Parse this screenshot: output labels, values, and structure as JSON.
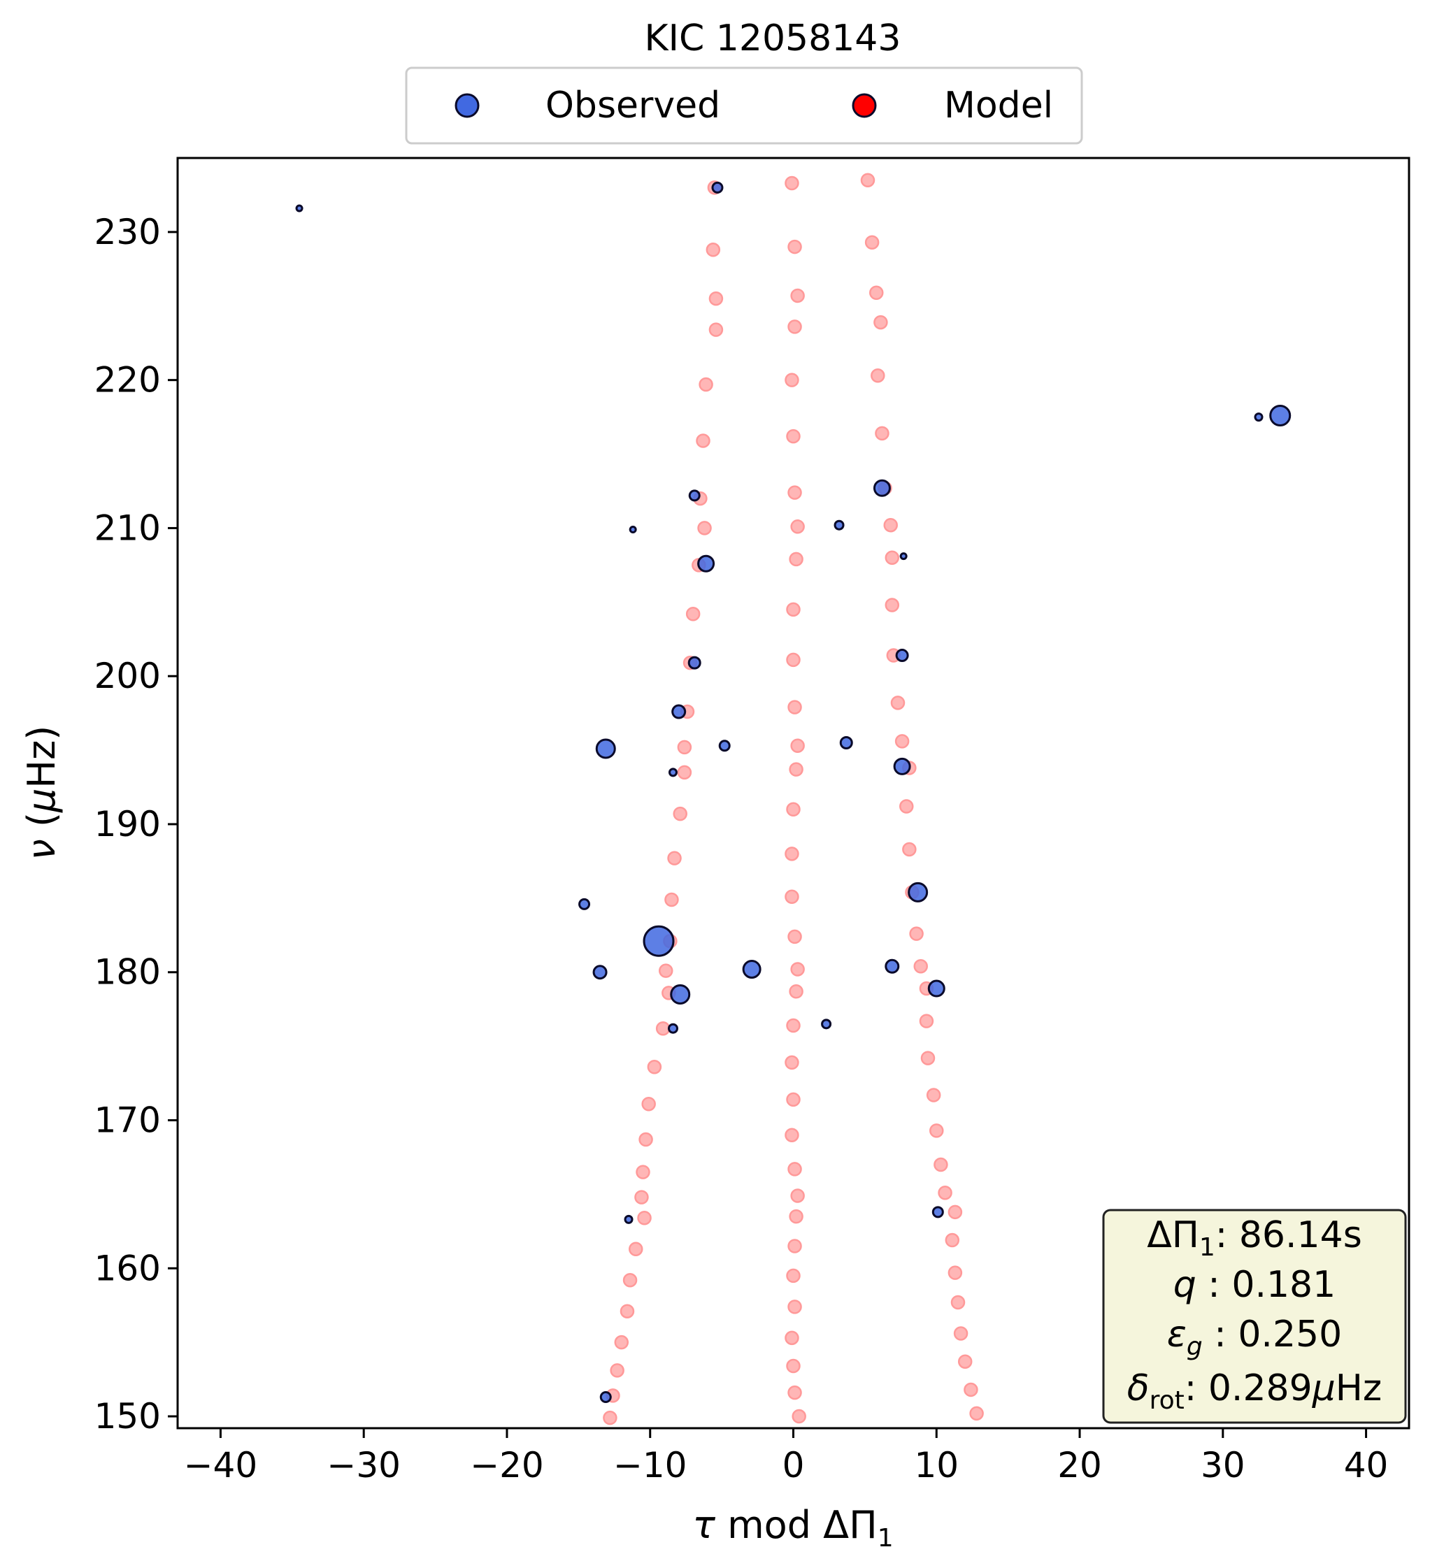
{
  "chart_data": {
    "type": "scatter",
    "title": "KIC 12058143",
    "xlabel": "τ mod ΔΠ₁",
    "ylabel": "ν (μHz)",
    "xlim": [
      -43,
      43
    ],
    "ylim": [
      149.2,
      235
    ],
    "xticks": [
      -40,
      -30,
      -20,
      -10,
      0,
      10,
      20,
      30,
      40
    ],
    "xtick_labels": [
      "−40",
      "−30",
      "−20",
      "−10",
      "0",
      "10",
      "20",
      "30",
      "40"
    ],
    "yticks": [
      150,
      160,
      170,
      180,
      190,
      200,
      210,
      220,
      230
    ],
    "ytick_labels": [
      "150",
      "160",
      "170",
      "180",
      "190",
      "200",
      "210",
      "220",
      "230"
    ],
    "grid": false,
    "legend": {
      "placement": "top-center",
      "entries": [
        {
          "label": "Observed",
          "color": "#4169e1"
        },
        {
          "label": "Model",
          "color": "#ff0000"
        }
      ]
    },
    "info_box": {
      "placement": "bottom-right",
      "lines": [
        "ΔΠ₁: 86.14s",
        "q :  0.181",
        "εg : 0.250",
        "δrot: 0.289μHz"
      ]
    },
    "colors": {
      "observed_fill": "#4169e1",
      "observed_edge": "#0a0a2a",
      "model_fill": "#ffb6b6",
      "model_edge": "#ff9999",
      "info_box_bg": "#f5f5dc"
    },
    "series": [
      {
        "name": "Model",
        "points": [
          [
            -0.1,
            233.3
          ],
          [
            0.1,
            229.0
          ],
          [
            0.3,
            225.7
          ],
          [
            0.1,
            223.6
          ],
          [
            -0.1,
            220.0
          ],
          [
            0.0,
            216.2
          ],
          [
            0.1,
            212.4
          ],
          [
            0.3,
            210.1
          ],
          [
            0.2,
            207.9
          ],
          [
            0.0,
            204.5
          ],
          [
            0.0,
            201.1
          ],
          [
            0.1,
            197.9
          ],
          [
            0.3,
            195.3
          ],
          [
            0.2,
            193.7
          ],
          [
            0.0,
            191.0
          ],
          [
            -0.1,
            188.0
          ],
          [
            -0.1,
            185.1
          ],
          [
            0.1,
            182.4
          ],
          [
            0.3,
            180.2
          ],
          [
            0.2,
            178.7
          ],
          [
            0.0,
            176.4
          ],
          [
            -0.1,
            173.9
          ],
          [
            0.0,
            171.4
          ],
          [
            -0.1,
            169.0
          ],
          [
            0.1,
            166.7
          ],
          [
            0.3,
            164.9
          ],
          [
            0.2,
            163.5
          ],
          [
            0.1,
            161.5
          ],
          [
            0.0,
            159.5
          ],
          [
            0.1,
            157.4
          ],
          [
            -0.1,
            155.3
          ],
          [
            0.0,
            153.4
          ],
          [
            0.1,
            151.6
          ],
          [
            0.4,
            150.0
          ],
          [
            -5.5,
            233.0
          ],
          [
            -5.6,
            228.8
          ],
          [
            -5.4,
            225.5
          ],
          [
            -5.4,
            223.4
          ],
          [
            -6.1,
            219.7
          ],
          [
            -6.3,
            215.9
          ],
          [
            -6.5,
            212.0
          ],
          [
            -6.2,
            210.0
          ],
          [
            -6.6,
            207.5
          ],
          [
            -7.0,
            204.2
          ],
          [
            -7.2,
            200.9
          ],
          [
            -7.4,
            197.6
          ],
          [
            -7.6,
            195.2
          ],
          [
            -7.6,
            193.5
          ],
          [
            -7.9,
            190.7
          ],
          [
            -8.3,
            187.7
          ],
          [
            -8.5,
            184.9
          ],
          [
            -8.6,
            182.1
          ],
          [
            -8.9,
            180.1
          ],
          [
            -8.7,
            178.6
          ],
          [
            -9.1,
            176.2
          ],
          [
            -9.7,
            173.6
          ],
          [
            -10.1,
            171.1
          ],
          [
            -10.3,
            168.7
          ],
          [
            -10.5,
            166.5
          ],
          [
            -10.6,
            164.8
          ],
          [
            -10.4,
            163.4
          ],
          [
            -11.0,
            161.3
          ],
          [
            -11.4,
            159.2
          ],
          [
            -11.6,
            157.1
          ],
          [
            -12.0,
            155.0
          ],
          [
            -12.3,
            153.1
          ],
          [
            -12.6,
            151.4
          ],
          [
            -12.8,
            149.9
          ],
          [
            5.2,
            233.5
          ],
          [
            5.5,
            229.3
          ],
          [
            5.8,
            225.9
          ],
          [
            6.1,
            223.9
          ],
          [
            5.9,
            220.3
          ],
          [
            6.2,
            216.4
          ],
          [
            6.4,
            212.7
          ],
          [
            6.8,
            210.2
          ],
          [
            6.9,
            208.0
          ],
          [
            6.9,
            204.8
          ],
          [
            7.0,
            201.4
          ],
          [
            7.3,
            198.2
          ],
          [
            7.6,
            195.6
          ],
          [
            8.1,
            193.8
          ],
          [
            7.9,
            191.2
          ],
          [
            8.1,
            188.3
          ],
          [
            8.3,
            185.4
          ],
          [
            8.6,
            182.6
          ],
          [
            8.9,
            180.4
          ],
          [
            9.3,
            178.9
          ],
          [
            9.3,
            176.7
          ],
          [
            9.4,
            174.2
          ],
          [
            9.8,
            171.7
          ],
          [
            10.0,
            169.3
          ],
          [
            10.3,
            167.0
          ],
          [
            10.6,
            165.1
          ],
          [
            11.3,
            163.8
          ],
          [
            11.1,
            161.9
          ],
          [
            11.3,
            159.7
          ],
          [
            11.5,
            157.7
          ],
          [
            11.7,
            155.6
          ],
          [
            12.0,
            153.7
          ],
          [
            12.4,
            151.8
          ],
          [
            12.8,
            150.2
          ]
        ]
      },
      {
        "name": "Observed",
        "points": [
          [
            -34.5,
            231.6,
            4
          ],
          [
            -5.3,
            233.0,
            7
          ],
          [
            32.5,
            217.5,
            5
          ],
          [
            34.0,
            217.6,
            14
          ],
          [
            -11.2,
            209.9,
            4
          ],
          [
            -6.9,
            212.2,
            7
          ],
          [
            -6.1,
            207.6,
            11
          ],
          [
            6.2,
            212.7,
            11
          ],
          [
            3.2,
            210.2,
            6
          ],
          [
            7.7,
            208.1,
            4
          ],
          [
            -6.9,
            200.9,
            8
          ],
          [
            7.6,
            201.4,
            8
          ],
          [
            -13.1,
            195.1,
            13
          ],
          [
            -8.0,
            197.6,
            9
          ],
          [
            -4.8,
            195.3,
            7
          ],
          [
            3.7,
            195.5,
            8
          ],
          [
            -8.4,
            193.5,
            5
          ],
          [
            7.6,
            193.9,
            11
          ],
          [
            -14.6,
            184.6,
            7
          ],
          [
            -9.4,
            182.1,
            21
          ],
          [
            -13.5,
            180.0,
            9
          ],
          [
            -2.9,
            180.2,
            12
          ],
          [
            6.9,
            180.4,
            9
          ],
          [
            8.7,
            185.4,
            13
          ],
          [
            -7.9,
            178.5,
            13
          ],
          [
            10.0,
            178.9,
            11
          ],
          [
            -8.4,
            176.2,
            6
          ],
          [
            2.3,
            176.5,
            6
          ],
          [
            -11.5,
            163.3,
            5
          ],
          [
            10.1,
            163.8,
            7
          ],
          [
            -13.1,
            151.3,
            7
          ]
        ]
      }
    ]
  }
}
